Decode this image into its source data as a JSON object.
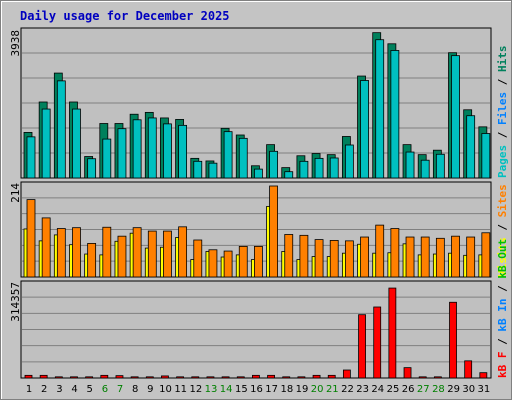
{
  "title": "Daily usage for December 2025",
  "colors": {
    "pages": "#00c0c0",
    "files": "#0080ff",
    "hits": "#00805c",
    "visits": "#ffff00",
    "sites": "#ff8000",
    "kb_in": "#0080ff",
    "kb_out": "#00c000",
    "kbf": "#ff0000",
    "weekend_day": "#008000"
  },
  "legend": {
    "top": [
      "Pages",
      "/",
      "Files",
      "/",
      "Hits"
    ],
    "middle": [
      "Visits",
      "/",
      "Sites"
    ],
    "bottom": [
      "kB F",
      "/",
      "kB In",
      "/",
      "kB Out"
    ]
  },
  "chart_data": [
    {
      "type": "bar",
      "title": "Daily usage for December 2025",
      "ylabel": "3938",
      "ylim": [
        0,
        3938
      ],
      "categories": [
        "1",
        "2",
        "3",
        "4",
        "5",
        "6",
        "7",
        "8",
        "9",
        "10",
        "11",
        "12",
        "13",
        "14",
        "15",
        "16",
        "17",
        "18",
        "19",
        "20",
        "21",
        "22",
        "23",
        "24",
        "25",
        "26",
        "27",
        "28",
        "29",
        "30",
        "31"
      ],
      "series": [
        {
          "name": "Hits",
          "values": [
            1230,
            2050,
            2830,
            2050,
            580,
            1470,
            1470,
            1720,
            1770,
            1620,
            1580,
            530,
            460,
            1340,
            1160,
            330,
            900,
            280,
            600,
            660,
            630,
            1120,
            2750,
            3920,
            3620,
            900,
            630,
            750,
            3380,
            1840,
            1380
          ]
        },
        {
          "name": "Files",
          "values": [
            1110,
            1860,
            2620,
            1860,
            520,
            1050,
            1330,
            1570,
            1620,
            1460,
            1420,
            450,
            400,
            1250,
            1070,
            240,
            720,
            170,
            450,
            530,
            540,
            890,
            2630,
            3730,
            3440,
            700,
            480,
            640,
            3300,
            1680,
            1200
          ]
        },
        {
          "name": "Pages",
          "values": [
            0,
            0,
            0,
            0,
            0,
            0,
            0,
            0,
            0,
            0,
            0,
            0,
            0,
            0,
            0,
            0,
            0,
            0,
            0,
            0,
            0,
            0,
            0,
            0,
            0,
            0,
            0,
            0,
            0,
            0,
            0
          ]
        }
      ]
    },
    {
      "type": "bar",
      "ylabel": "214",
      "ylim": [
        0,
        214
      ],
      "categories": [
        "1",
        "2",
        "3",
        "4",
        "5",
        "6",
        "7",
        "8",
        "9",
        "10",
        "11",
        "12",
        "13",
        "14",
        "15",
        "16",
        "17",
        "18",
        "19",
        "20",
        "21",
        "22",
        "23",
        "24",
        "25",
        "26",
        "27",
        "28",
        "29",
        "30",
        "31"
      ],
      "series": [
        {
          "name": "Visits",
          "values": [
            113,
            85,
            99,
            76,
            54,
            52,
            84,
            103,
            68,
            70,
            93,
            41,
            60,
            47,
            52,
            41,
            166,
            60,
            41,
            48,
            48,
            56,
            77,
            56,
            57,
            78,
            52,
            54,
            56,
            51,
            52
          ]
        },
        {
          "name": "Sites",
          "values": [
            182,
            139,
            114,
            116,
            79,
            117,
            96,
            116,
            108,
            108,
            118,
            87,
            64,
            61,
            72,
            72,
            214,
            100,
            98,
            88,
            86,
            85,
            94,
            122,
            114,
            94,
            94,
            91,
            96,
            94,
            104
          ]
        }
      ]
    },
    {
      "type": "bar",
      "ylabel": "314357",
      "ylim": [
        0,
        314357
      ],
      "categories": [
        "1",
        "2",
        "3",
        "4",
        "5",
        "6",
        "7",
        "8",
        "9",
        "10",
        "11",
        "12",
        "13",
        "14",
        "15",
        "16",
        "17",
        "18",
        "19",
        "20",
        "21",
        "22",
        "23",
        "24",
        "25",
        "26",
        "27",
        "28",
        "29",
        "30",
        "31"
      ],
      "xticks": [
        "1",
        "2",
        "3",
        "4",
        "5",
        "6",
        "7",
        "8",
        "9",
        "10",
        "11",
        "12",
        "13",
        "14",
        "15",
        "16",
        "17",
        "18",
        "19",
        "20",
        "21",
        "22",
        "23",
        "24",
        "25",
        "26",
        "27",
        "28",
        "29",
        "30",
        "31"
      ],
      "weekend_days": [
        "6",
        "7",
        "13",
        "14",
        "20",
        "21",
        "27",
        "28"
      ],
      "series": [
        {
          "name": "kB F",
          "values": [
            9000,
            9000,
            4000,
            4000,
            4000,
            9000,
            8000,
            4000,
            4000,
            7000,
            4000,
            4000,
            4000,
            4000,
            4000,
            9000,
            9000,
            4000,
            4000,
            9000,
            9000,
            27000,
            214000,
            240000,
            304000,
            35000,
            4000,
            4000,
            256000,
            58000,
            18000
          ]
        }
      ]
    }
  ]
}
